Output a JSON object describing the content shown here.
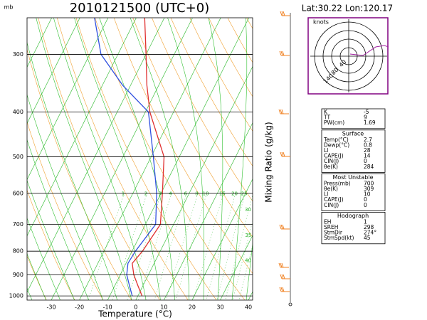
{
  "chart_data": {
    "type": "skewt",
    "title": "2010121500 (UTC+0)",
    "location": "Lat:30.22 Lon:120.17",
    "y_unit": "mb",
    "xlabel": "Temperature (°C)",
    "mixing_label": "Mixing Ratio (g/kg)",
    "xlim": [
      -38.6,
      41.5
    ],
    "xticks": [
      -30,
      -20,
      -10,
      0,
      10,
      20,
      30,
      40
    ],
    "ylim": [
      1021,
      250
    ],
    "yticks": [
      300,
      400,
      500,
      600,
      700,
      800,
      900,
      1000
    ],
    "log_y": true,
    "pressure": [
      1000,
      950,
      900,
      850,
      800,
      700,
      600,
      500,
      400,
      350,
      300,
      250
    ],
    "series": [
      {
        "color": "#e03030",
        "values": [
          1.5,
          -1.8,
          -5.2,
          -7.8,
          -6.3,
          -4.7,
          -9.5,
          -15.4,
          -28.4,
          -34.2,
          -40,
          -47
        ]
      },
      {
        "color": "#3050e0",
        "values": [
          -2,
          -4.8,
          -7.7,
          -9.3,
          -8.8,
          -6.4,
          -11.5,
          -19.2,
          -28.9,
          -42.8,
          -56,
          -64.8
        ]
      }
    ],
    "mixing_ratios": [
      1,
      2,
      3,
      4,
      6,
      8,
      10,
      15,
      20,
      25,
      30,
      35,
      40
    ]
  },
  "hodograph": {
    "title": "knots",
    "ring_labels": [
      "40",
      "80",
      "140"
    ]
  },
  "indices": [
    {
      "rows": [
        [
          "K",
          "-5"
        ],
        [
          "TT",
          "9"
        ],
        [
          "PW(cm)",
          "1.69"
        ]
      ]
    },
    {
      "title": "Surface",
      "rows": [
        [
          "Temp(°C)",
          "2.7"
        ],
        [
          "Dewp(°C)",
          "0.8"
        ],
        [
          "LI",
          "28"
        ],
        [
          "CAPE(J)",
          "14"
        ],
        [
          "CIN(J)",
          "0"
        ],
        [
          "θe(K)",
          "284"
        ]
      ]
    },
    {
      "title": "Most Unstable",
      "rows": [
        [
          "Press(mb)",
          "700"
        ],
        [
          "θe(K)",
          "309"
        ],
        [
          "LI",
          "10"
        ],
        [
          "CAPE(J)",
          "0"
        ],
        [
          "CIN(J)",
          "0"
        ]
      ]
    },
    {
      "title": "Hodograph",
      "rows": [
        [
          "EH",
          "1"
        ],
        [
          "SREH",
          "298"
        ],
        [
          "StmDir",
          "274°"
        ],
        [
          "StmSpd(kt)",
          "45"
        ]
      ]
    }
  ]
}
